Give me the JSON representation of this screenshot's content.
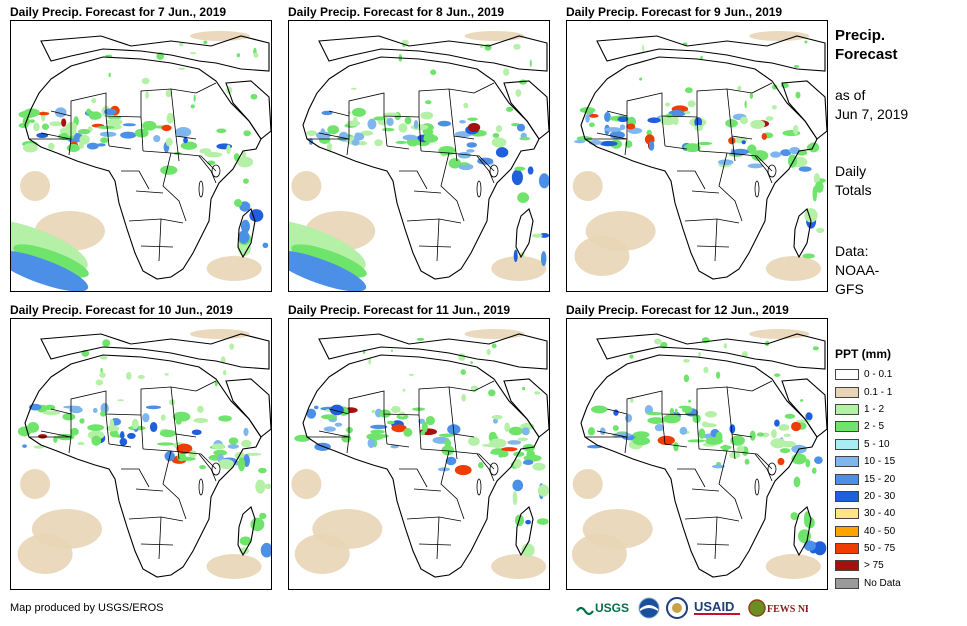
{
  "panels": [
    {
      "title": "Daily Precip. Forecast for 7 Jun., 2019"
    },
    {
      "title": "Daily Precip. Forecast for 8 Jun., 2019"
    },
    {
      "title": "Daily Precip. Forecast for 9 Jun., 2019"
    },
    {
      "title": "Daily Precip. Forecast for 10 Jun., 2019"
    },
    {
      "title": "Daily Precip. Forecast for 11 Jun., 2019"
    },
    {
      "title": "Daily Precip. Forecast for 12 Jun., 2019"
    }
  ],
  "sidebar": {
    "title_line1": "Precip.",
    "title_line2": "Forecast",
    "asof_line1": "as of",
    "asof_line2": "Jun 7, 2019",
    "daily_line1": "Daily",
    "daily_line2": "Totals",
    "data_line1": "Data:",
    "data_line2": "NOAA-",
    "data_line3": "GFS"
  },
  "legend": {
    "title": "PPT (mm)",
    "items": [
      {
        "label": "0 - 0.1",
        "color": "#ffffff"
      },
      {
        "label": "0.1 - 1",
        "color": "#e8d5b5"
      },
      {
        "label": "1 - 2",
        "color": "#b4f0a6"
      },
      {
        "label": "2 - 5",
        "color": "#6ee46a"
      },
      {
        "label": "5 - 10",
        "color": "#a9ecf4"
      },
      {
        "label": "10 - 15",
        "color": "#7fb6ee"
      },
      {
        "label": "15 - 20",
        "color": "#4b8fe6"
      },
      {
        "label": "20 - 30",
        "color": "#1f5fdc"
      },
      {
        "label": "30 - 40",
        "color": "#ffe680"
      },
      {
        "label": "40 - 50",
        "color": "#ffa300"
      },
      {
        "label": "50 - 75",
        "color": "#ef3c00"
      },
      {
        "label": "> 75",
        "color": "#a81010"
      },
      {
        "label": "No Data",
        "color": "#9a9a9a"
      }
    ]
  },
  "footer": {
    "credit": "Map produced by USGS/EROS",
    "logos": [
      {
        "name": "USGS",
        "text": "USGS"
      },
      {
        "name": "NOAA",
        "text": "NOAA"
      },
      {
        "name": "USAID",
        "text": "USAID"
      },
      {
        "name": "FEWS NET",
        "text": "FEWS NET"
      }
    ]
  }
}
